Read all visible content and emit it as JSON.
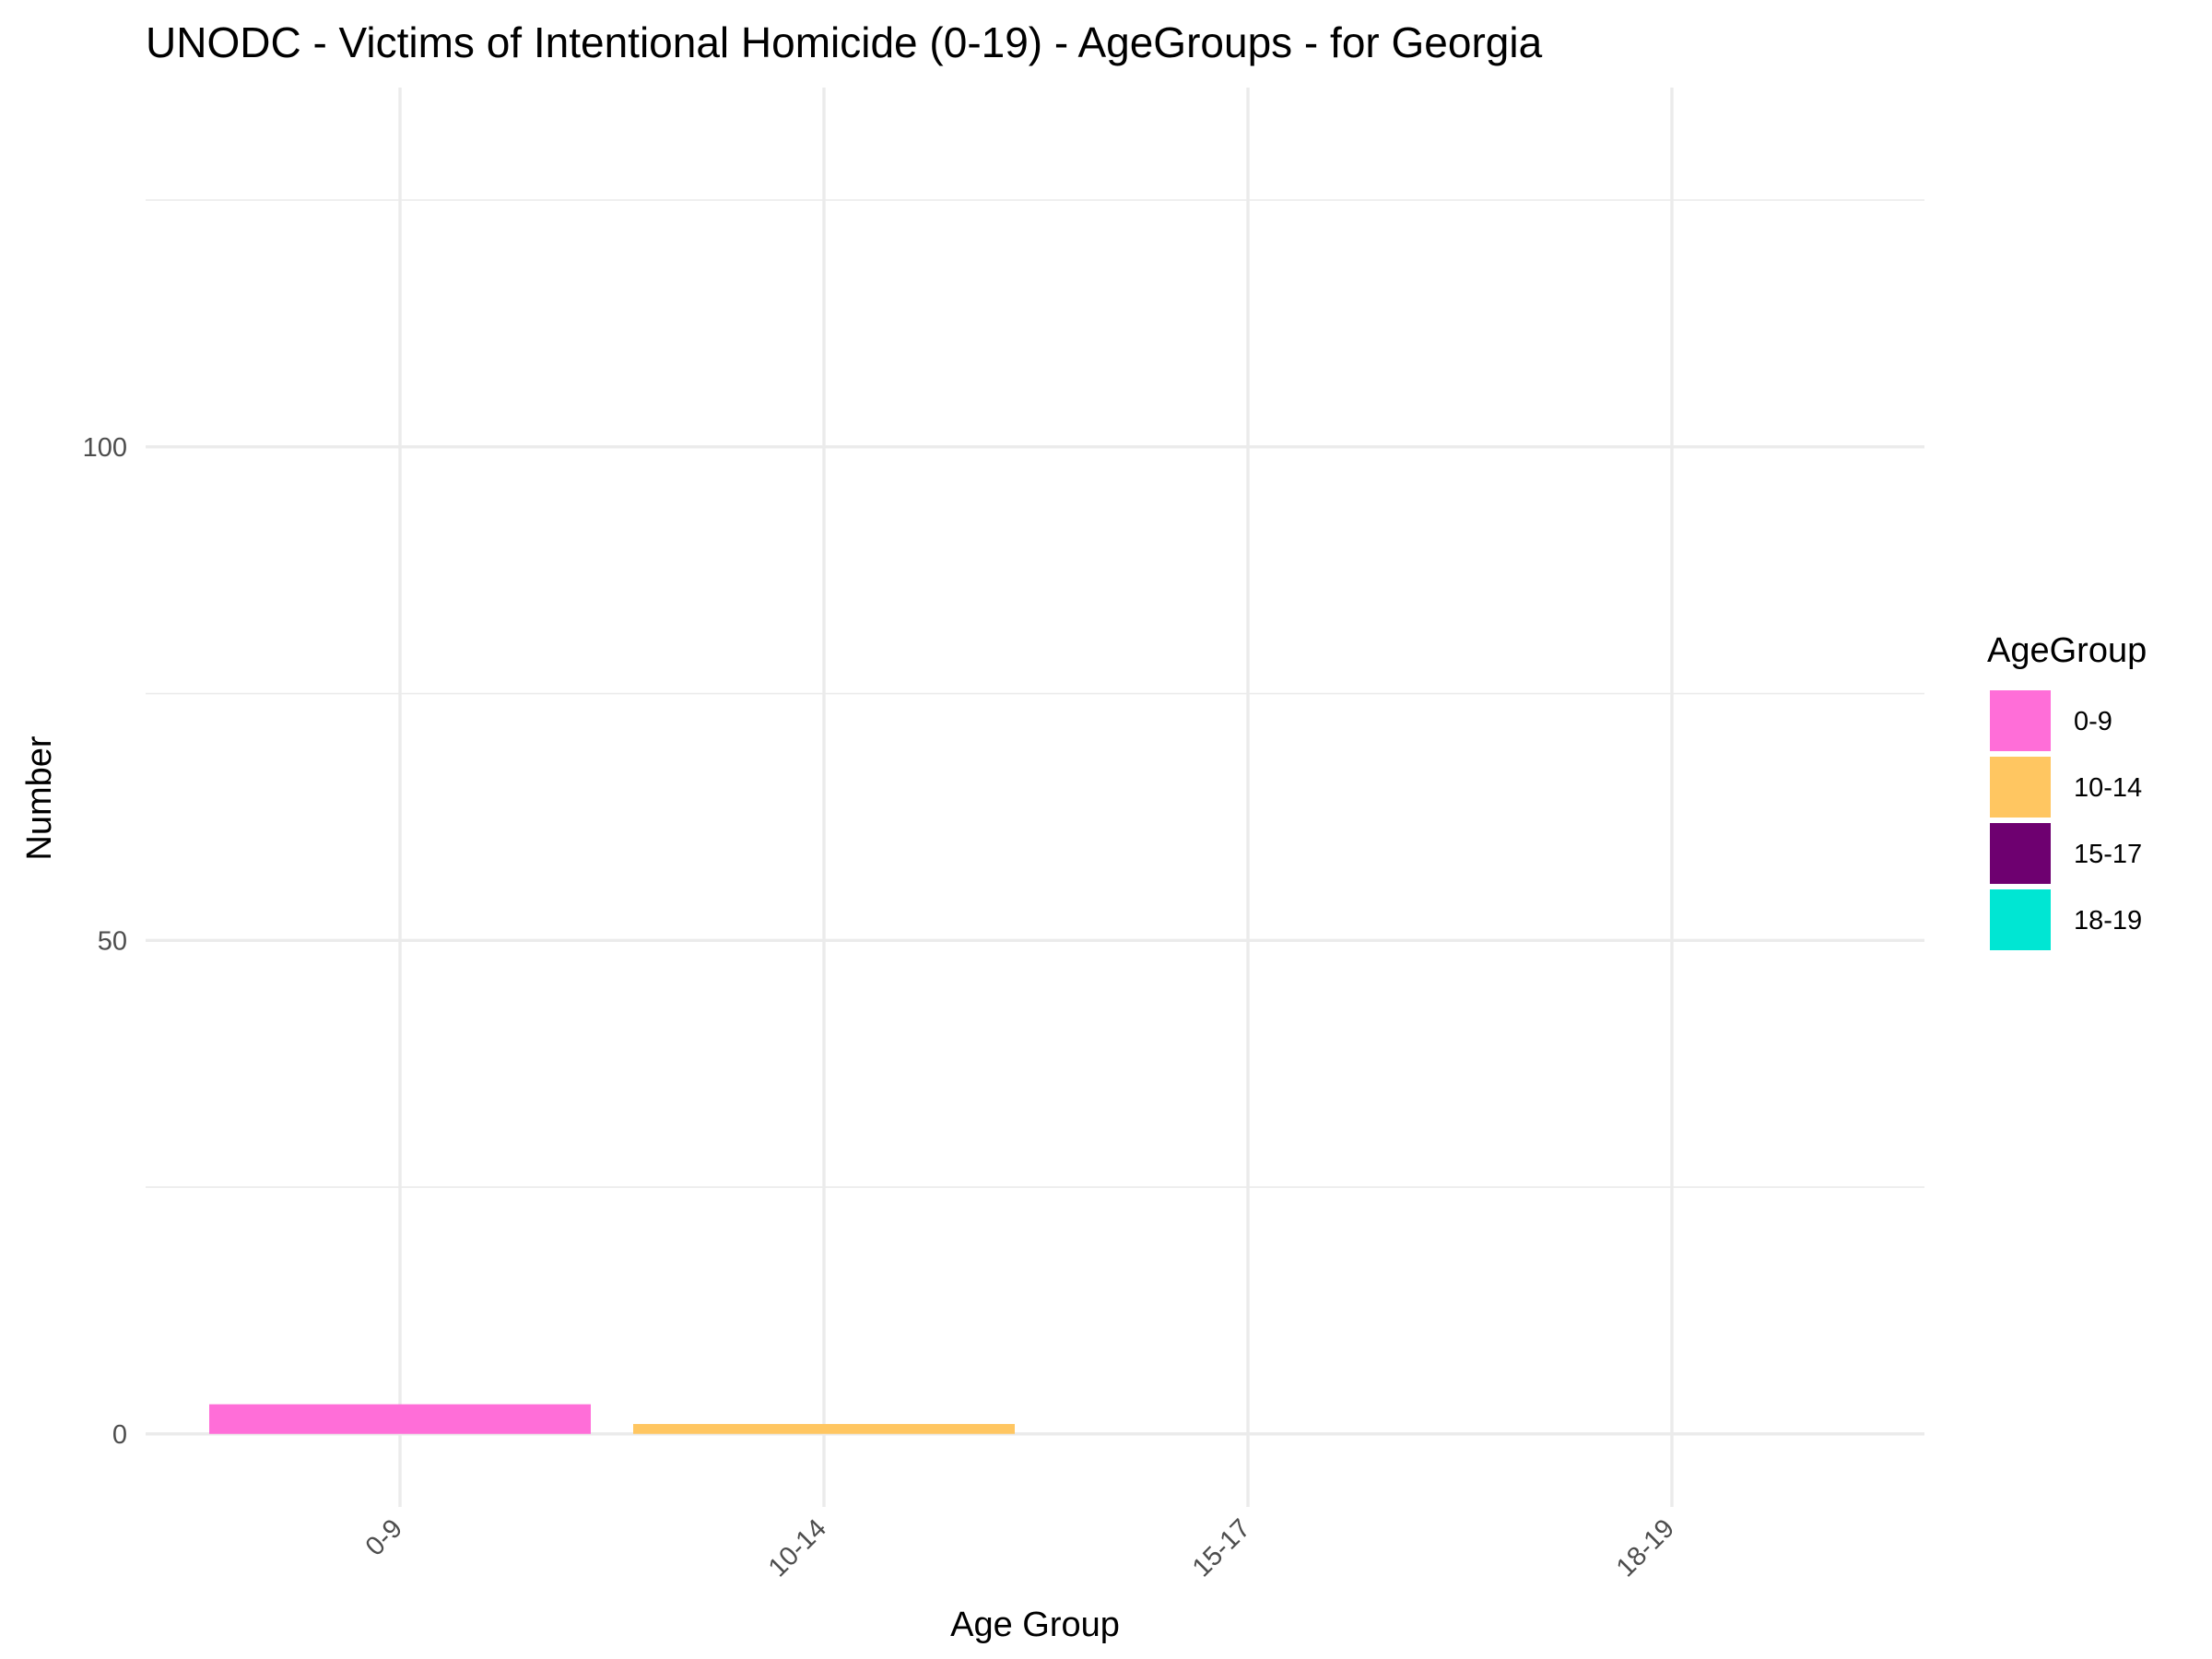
{
  "chart_data": {
    "type": "bar",
    "title": "UNODC - Victims of Intentional Homicide (0-19) - AgeGroups - for Georgia",
    "xlabel": "Age Group",
    "ylabel": "Number",
    "categories": [
      "0-9",
      "10-14",
      "15-17",
      "18-19"
    ],
    "values": [
      3,
      1,
      0,
      0
    ],
    "colors": [
      "#ff6ed8",
      "#ffc661",
      "#6e0070",
      "#00e6d3"
    ],
    "ylim": [
      -7.4,
      136.4
    ],
    "y_ticks": [
      0,
      50,
      100
    ],
    "y_tick_labels": [
      "0",
      "50",
      "100"
    ],
    "y_minor_ticks": [
      25,
      75,
      125
    ],
    "grid": true,
    "legend": {
      "title": "AgeGroup",
      "placement": "right",
      "entries": [
        "0-9",
        "10-14",
        "15-17",
        "18-19"
      ]
    }
  }
}
